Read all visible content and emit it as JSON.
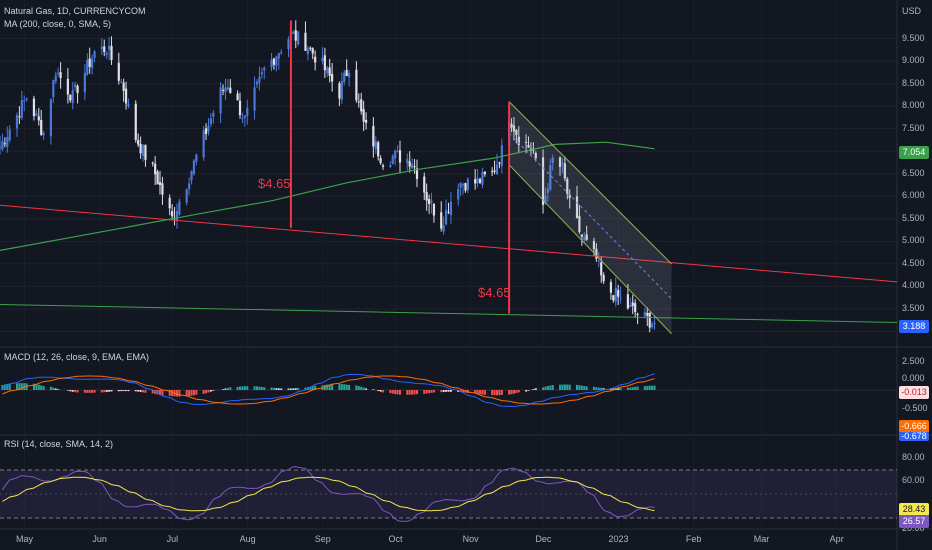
{
  "main_pane": {
    "title": "Natural Gas, 1D, CURRENCYCOM",
    "ma_legend": "MA (200, close, 0, SMA, 5)",
    "currency": "USD",
    "price_ticks": [
      "9.500",
      "9.000",
      "8.500",
      "8.000",
      "7.500",
      "7.000",
      "6.500",
      "6.000",
      "5.500",
      "5.000",
      "4.500",
      "4.000",
      "3.500",
      "3.000"
    ],
    "last_price": "3.188",
    "ma_value": "7.054",
    "annotations": [
      "$4.65",
      "$4.65"
    ],
    "colors": {
      "up": "#4a78d6",
      "down": "#dfe1e6",
      "ma": "#3aa14a",
      "annotation": "#f23645",
      "channel": "#90b34a"
    }
  },
  "macd_pane": {
    "legend": "MACD (12, 26, close, 9, EMA, EMA)",
    "ticks": [
      "2.500",
      "0.000",
      "-0.500"
    ],
    "hist_value": "-0.013",
    "signal_value": "-0.666",
    "macd_value": "-0.678"
  },
  "rsi_pane": {
    "legend": "RSI (14, close, SMA, 14, 2)",
    "ticks": [
      "80.00",
      "60.00",
      "20.00"
    ],
    "ma_value": "28.43",
    "rsi_value": "26.57"
  },
  "x_axis": {
    "labels": [
      "May",
      "Jun",
      "Jul",
      "Aug",
      "Sep",
      "Oct",
      "Nov",
      "Dec",
      "2023",
      "Feb",
      "Mar",
      "Apr"
    ]
  },
  "chart_data": {
    "type": "candlestick",
    "title": "Natural Gas, 1D, CURRENCYCOM",
    "ylabel": "USD",
    "ylim": [
      2.7,
      10.0
    ],
    "x_range": [
      "2022-04-25",
      "2023-04-30"
    ],
    "anchors": [
      [
        "2022-04-25",
        7.1
      ],
      [
        "2022-05-06",
        8.2
      ],
      [
        "2022-05-13",
        7.4
      ],
      [
        "2022-05-18",
        8.8
      ],
      [
        "2022-05-25",
        8.2
      ],
      [
        "2022-06-03",
        9.2
      ],
      [
        "2022-06-08",
        9.3
      ],
      [
        "2022-06-15",
        8.4
      ],
      [
        "2022-06-20",
        7.3
      ],
      [
        "2022-06-28",
        6.5
      ],
      [
        "2022-07-05",
        5.5
      ],
      [
        "2022-07-11",
        6.3
      ],
      [
        "2022-07-18",
        7.3
      ],
      [
        "2022-07-25",
        8.3
      ],
      [
        "2022-07-28",
        8.5
      ],
      [
        "2022-08-04",
        7.7
      ],
      [
        "2022-08-12",
        8.8
      ],
      [
        "2022-08-19",
        9.3
      ],
      [
        "2022-08-23",
        9.6
      ],
      [
        "2022-08-29",
        9.4
      ],
      [
        "2022-09-05",
        8.9
      ],
      [
        "2022-09-12",
        8.3
      ],
      [
        "2022-09-16",
        8.9
      ],
      [
        "2022-09-22",
        7.6
      ],
      [
        "2022-09-30",
        6.8
      ],
      [
        "2022-10-05",
        6.9
      ],
      [
        "2022-10-12",
        6.8
      ],
      [
        "2022-10-18",
        6.0
      ],
      [
        "2022-10-24",
        5.4
      ],
      [
        "2022-10-31",
        6.3
      ],
      [
        "2022-11-07",
        6.3
      ],
      [
        "2022-11-14",
        6.5
      ],
      [
        "2022-11-18",
        7.0
      ],
      [
        "2022-11-21",
        7.8
      ],
      [
        "2022-11-25",
        7.3
      ],
      [
        "2022-12-01",
        7.0
      ],
      [
        "2022-12-05",
        5.8
      ],
      [
        "2022-12-09",
        6.8
      ],
      [
        "2022-12-13",
        6.6
      ],
      [
        "2022-12-16",
        5.8
      ],
      [
        "2022-12-21",
        5.1
      ],
      [
        "2022-12-27",
        4.6
      ],
      [
        "2022-12-30",
        4.0
      ],
      [
        "2023-01-04",
        3.8
      ],
      [
        "2023-01-10",
        3.5
      ],
      [
        "2023-01-16",
        3.3
      ],
      [
        "2023-01-20",
        3.188
      ]
    ],
    "moving_average_200": {
      "name": "MA (200, close, 0, SMA, 5)",
      "points": [
        [
          "2022-04-25",
          4.8
        ],
        [
          "2022-06-15",
          5.3
        ],
        [
          "2022-07-15",
          5.6
        ],
        [
          "2022-08-15",
          5.9
        ],
        [
          "2022-09-15",
          6.3
        ],
        [
          "2022-10-15",
          6.6
        ],
        [
          "2022-11-15",
          6.85
        ],
        [
          "2022-12-10",
          7.15
        ],
        [
          "2022-12-31",
          7.2
        ],
        [
          "2023-01-20",
          7.054
        ]
      ]
    },
    "trendlines": [
      {
        "color": "#f23645",
        "points": [
          [
            "2022-04-25",
            5.8
          ],
          [
            "2023-04-30",
            4.1
          ]
        ]
      },
      {
        "color": "#3aa14a",
        "points": [
          [
            "2022-04-25",
            3.6
          ],
          [
            "2023-04-30",
            3.2
          ]
        ]
      }
    ],
    "annotations": [
      {
        "text": "$4.65",
        "x": "2022-08-23",
        "y_from": 9.9,
        "y_to": 5.3
      },
      {
        "text": "$4.65",
        "x": "2022-11-21",
        "y_from": 8.1,
        "y_to": 3.4
      }
    ],
    "current_price": 3.188
  }
}
